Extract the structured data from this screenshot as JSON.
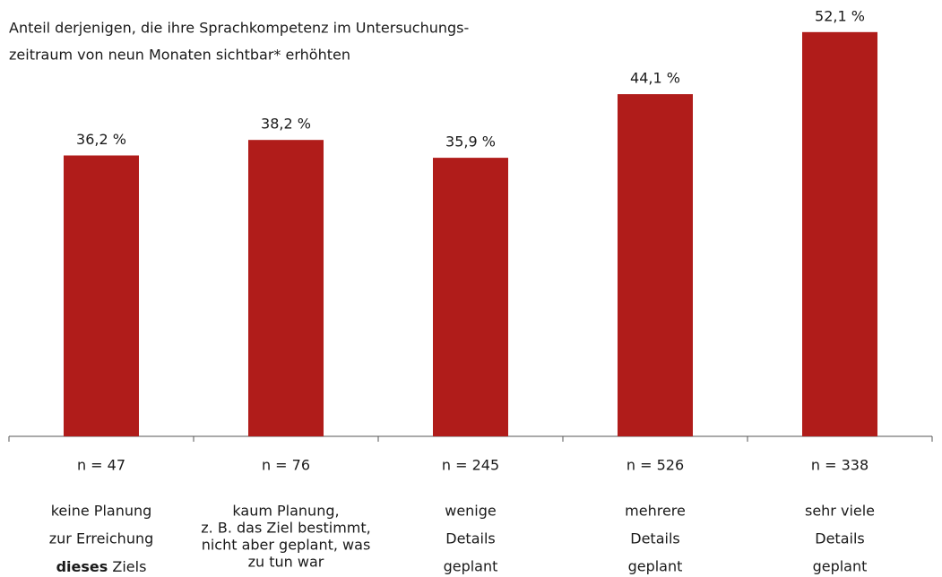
{
  "chart_data": {
    "type": "bar",
    "title": [
      "Anteil derjenigen, die ihre Sprachkompetenz im Untersuchungs-",
      "zeitraum von neun Monaten sichtbar* erhöhten"
    ],
    "categories": [
      [
        "keine Planung",
        "zur Erreichung",
        [
          {
            "text": "dieses",
            "bold": true
          },
          " Ziels"
        ]
      ],
      [
        "kaum Planung,",
        "z. B. das Ziel bestimmt,",
        "nicht aber geplant, was",
        "zu tun war"
      ],
      [
        "wenige",
        "Details",
        "geplant"
      ],
      [
        "mehrere",
        "Details",
        "geplant"
      ],
      [
        "sehr viele",
        "Details",
        "geplant"
      ]
    ],
    "n_labels": [
      "n = 47",
      "n = 76",
      "n = 245",
      "n = 526",
      "n = 338"
    ],
    "values": [
      36.2,
      38.2,
      35.9,
      44.1,
      52.1
    ],
    "value_labels": [
      "36,2 %",
      "38,2 %",
      "35,9 %",
      "44,1 %",
      "52,1 %"
    ],
    "color": "#b01c1a"
  }
}
